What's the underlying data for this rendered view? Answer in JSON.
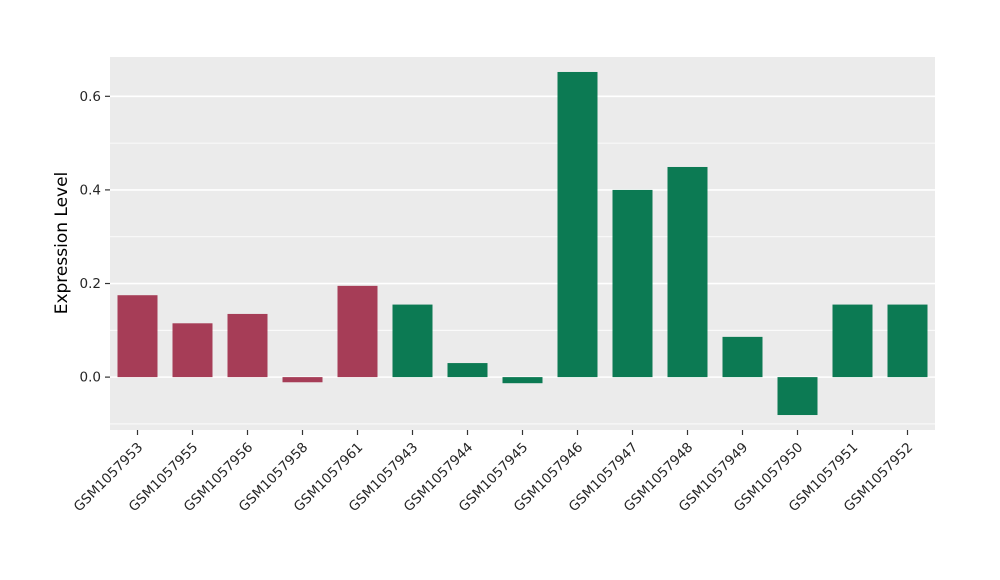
{
  "chart_data": {
    "type": "bar",
    "title": "",
    "xlabel": "",
    "ylabel": "Expression Level",
    "categories": [
      "GSM1057953",
      "GSM1057955",
      "GSM1057956",
      "GSM1057958",
      "GSM1057961",
      "GSM1057943",
      "GSM1057944",
      "GSM1057945",
      "GSM1057946",
      "GSM1057947",
      "GSM1057948",
      "GSM1057949",
      "GSM1057950",
      "GSM1057951",
      "GSM1057952"
    ],
    "values": [
      0.175,
      0.115,
      0.135,
      -0.011,
      0.195,
      0.155,
      0.03,
      -0.013,
      0.652,
      0.4,
      0.449,
      0.086,
      -0.081,
      0.155,
      0.155
    ],
    "groups": [
      "group1",
      "group1",
      "group1",
      "group1",
      "group1",
      "group2",
      "group2",
      "group2",
      "group2",
      "group2",
      "group2",
      "group2",
      "group2",
      "group2",
      "group2"
    ],
    "group_colors": {
      "group1": "#a63d57",
      "group2": "#0c7a53"
    },
    "yticks": [
      0.0,
      0.2,
      0.4,
      0.6
    ],
    "ytick_labels": [
      "0.0",
      "0.2",
      "0.4",
      "0.6"
    ],
    "yticks_minor": [
      -0.1,
      0.1,
      0.3,
      0.5
    ],
    "ylim": [
      -0.113,
      0.684
    ],
    "panel_background": "#ebebeb",
    "grid_color": "#ffffff",
    "tick_color": "#333333",
    "tick_label_color": "#262626",
    "legend": "none",
    "grid": "horizontal"
  }
}
